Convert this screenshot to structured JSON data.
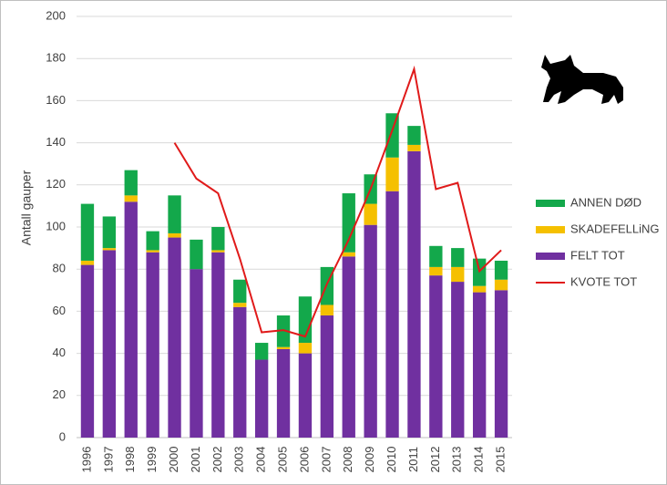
{
  "chart_data": {
    "type": "bar",
    "y_label": "Antall gauper",
    "categories": [
      "1996",
      "1997",
      "1998",
      "1999",
      "2000",
      "2001",
      "2002",
      "2003",
      "2004",
      "2005",
      "2006",
      "2007",
      "2008",
      "2009",
      "2010",
      "2011",
      "2012",
      "2013",
      "2014",
      "2015"
    ],
    "series": [
      {
        "name": "ANNEN DØD",
        "type": "bar",
        "color": "#13a84b",
        "values": [
          27,
          15,
          12,
          9,
          18,
          14,
          11,
          11,
          8,
          15,
          22,
          18,
          28,
          14,
          21,
          9,
          10,
          9,
          13,
          9
        ]
      },
      {
        "name": "SKADEFELLiNG",
        "type": "bar",
        "color": "#f5c000",
        "values": [
          2,
          1,
          3,
          1,
          2,
          0,
          1,
          2,
          0,
          1,
          5,
          5,
          2,
          10,
          16,
          3,
          4,
          7,
          3,
          5
        ]
      },
      {
        "name": "FELT TOT",
        "type": "bar",
        "color": "#7030a0",
        "values": [
          82,
          89,
          112,
          88,
          95,
          80,
          88,
          62,
          37,
          42,
          40,
          58,
          86,
          101,
          117,
          136,
          77,
          74,
          69,
          70
        ]
      },
      {
        "name": "KVOTE TOT",
        "type": "line",
        "color": "#e01a1a",
        "values": [
          null,
          null,
          null,
          null,
          140,
          123,
          116,
          85,
          50,
          51,
          48,
          73,
          94,
          118,
          146,
          175,
          118,
          121,
          79,
          89
        ]
      }
    ],
    "ylim": [
      0,
      200
    ],
    "yticks": [
      0,
      20,
      40,
      60,
      80,
      100,
      120,
      140,
      160,
      180,
      200
    ],
    "grid": true
  }
}
